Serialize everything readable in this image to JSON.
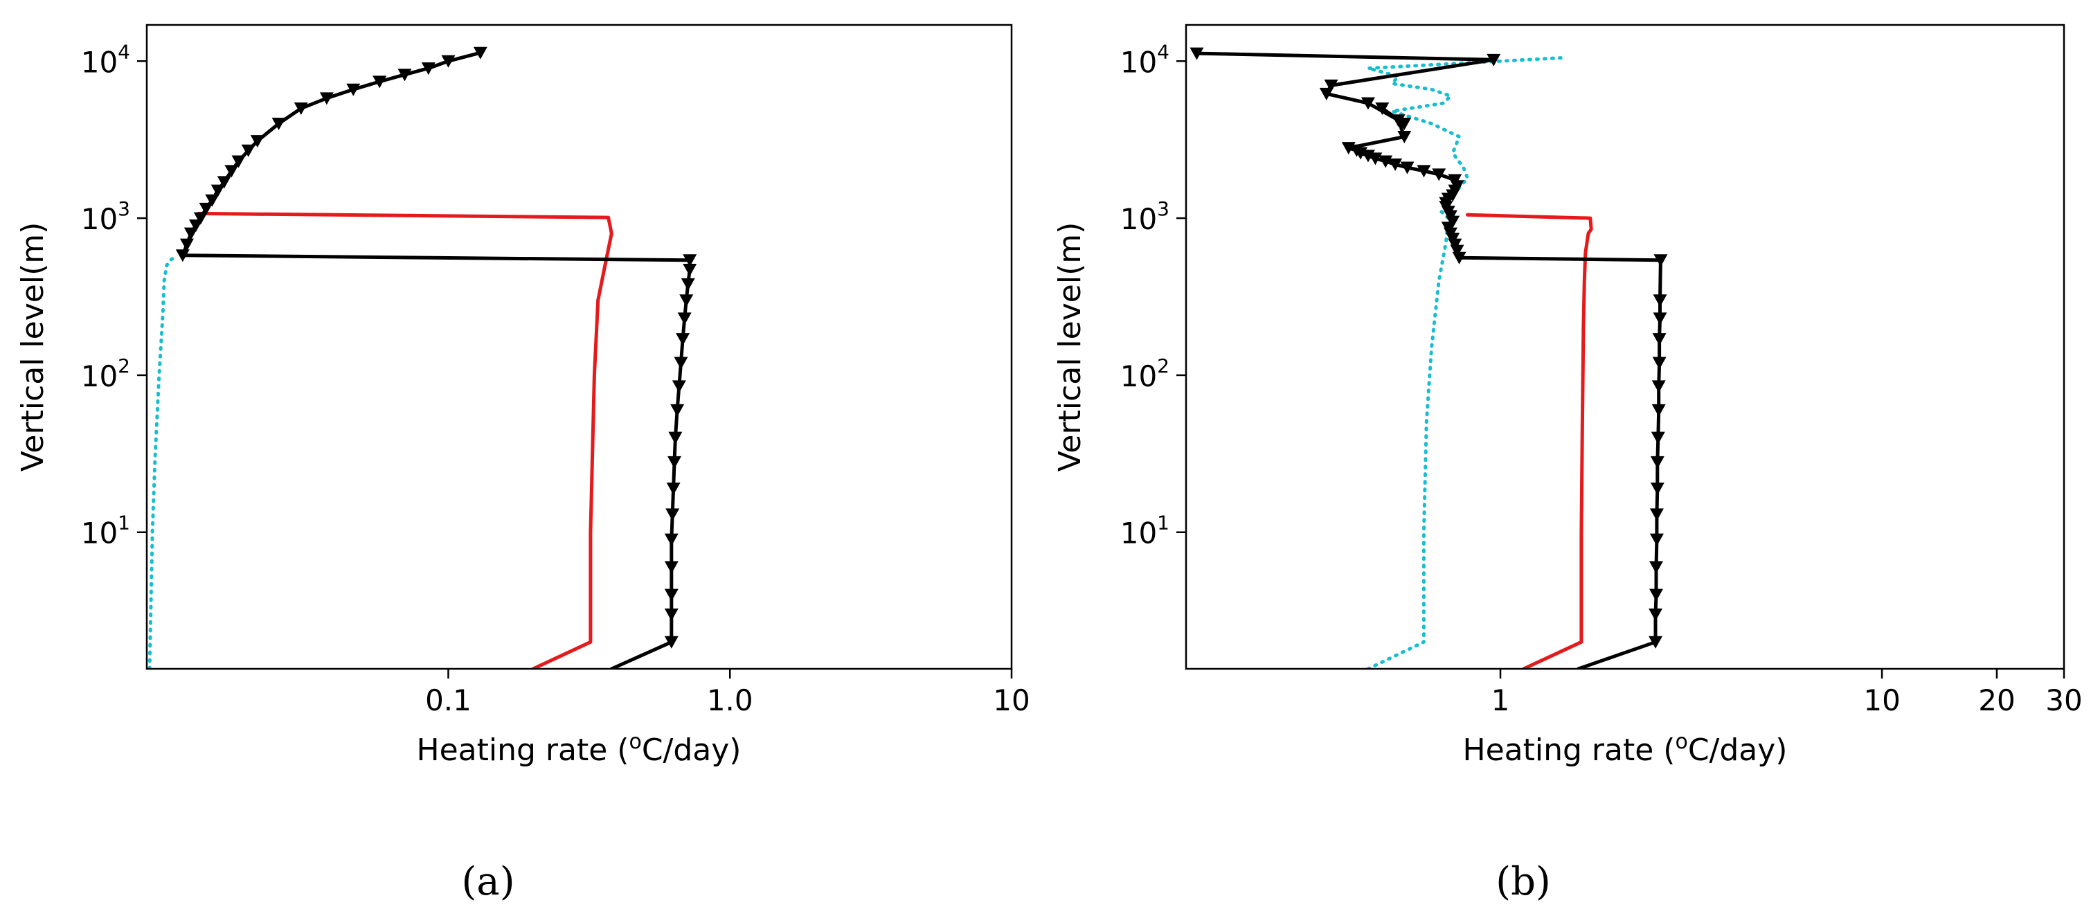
{
  "chart_data": [
    {
      "type": "line",
      "panel_label": "(a)",
      "xlabel": "Heating rate (°C/day)",
      "xlabel_main": "Heating rate (",
      "xlabel_sup": "o",
      "xlabel_tail": "C/day)",
      "ylabel": "Vertical level(m)",
      "xscale": "log",
      "yscale": "log",
      "xlim": [
        0.0085,
        10
      ],
      "ylim": [
        1.35,
        17000
      ],
      "xticks": [
        {
          "value": 0.1,
          "label": "0.1"
        },
        {
          "value": 1.0,
          "label": "1.0"
        },
        {
          "value": 10,
          "label": "10"
        }
      ],
      "yticks": [
        {
          "value": 10,
          "base": "10",
          "exp": "1"
        },
        {
          "value": 100,
          "base": "10",
          "exp": "2"
        },
        {
          "value": 1000,
          "base": "10",
          "exp": "3"
        },
        {
          "value": 10000,
          "base": "10",
          "exp": "4"
        }
      ],
      "series": [
        {
          "name": "cyan-dotted",
          "color": "#17becf",
          "style": "dotted",
          "marker": "none",
          "x": [
            0.0087,
            0.0089,
            0.0091,
            0.0094,
            0.0097,
            0.0098,
            0.01,
            0.0103,
            0.0106
          ],
          "y": [
            1.35,
            10,
            30,
            100,
            250,
            400,
            500,
            540,
            560
          ]
        },
        {
          "name": "red-solid",
          "color": "#e41a1c",
          "style": "solid",
          "marker": "none",
          "x": [
            0.2,
            0.32,
            0.32,
            0.33,
            0.34,
            0.36,
            0.38,
            0.37,
            0.013
          ],
          "y": [
            1.35,
            2,
            10,
            100,
            300,
            500,
            800,
            1010,
            1070
          ]
        },
        {
          "name": "black-triangles",
          "color": "#000000",
          "style": "solid",
          "marker": "triangle-down",
          "x": [
            0.38,
            0.62,
            0.62,
            0.62,
            0.62,
            0.62,
            0.625,
            0.63,
            0.635,
            0.64,
            0.65,
            0.66,
            0.67,
            0.68,
            0.69,
            0.7,
            0.71,
            0.72,
            0.72,
            0.0114,
            0.0118,
            0.0122,
            0.0127,
            0.0132,
            0.0138,
            0.0145,
            0.0152,
            0.016,
            0.017,
            0.018,
            0.0195,
            0.021,
            0.025,
            0.03,
            0.037,
            0.046,
            0.057,
            0.07,
            0.085,
            0.1,
            0.13
          ],
          "y": [
            1.35,
            2,
            3,
            4,
            6,
            9,
            13,
            19,
            28,
            40,
            60,
            85,
            120,
            170,
            230,
            300,
            380,
            470,
            540,
            580,
            680,
            800,
            900,
            1000,
            1150,
            1300,
            1500,
            1700,
            2000,
            2300,
            2700,
            3100,
            4000,
            5000,
            5800,
            6600,
            7400,
            8200,
            9000,
            10000,
            11300
          ]
        }
      ]
    },
    {
      "type": "line",
      "panel_label": "(b)",
      "xlabel": "Heating rate (°C/day)",
      "xlabel_main": "Heating rate (",
      "xlabel_sup": "o",
      "xlabel_tail": "C/day)",
      "ylabel": "Vertical level(m)",
      "xscale": "log",
      "yscale": "log",
      "xlim": [
        0.15,
        30
      ],
      "ylim": [
        1.35,
        17000
      ],
      "xticks": [
        {
          "value": 1,
          "label": "1"
        },
        {
          "value": 10,
          "label": "10"
        },
        {
          "value": 20,
          "label": "20"
        },
        {
          "value": 30,
          "label": "30"
        }
      ],
      "yticks": [
        {
          "value": 10,
          "base": "10",
          "exp": "1"
        },
        {
          "value": 100,
          "base": "10",
          "exp": "2"
        },
        {
          "value": 1000,
          "base": "10",
          "exp": "3"
        },
        {
          "value": 10000,
          "base": "10",
          "exp": "4"
        }
      ],
      "series": [
        {
          "name": "cyan-dotted",
          "color": "#17becf",
          "style": "dotted",
          "marker": "none",
          "x": [
            0.45,
            0.63,
            0.63,
            0.64,
            0.66,
            0.69,
            0.72,
            0.73,
            0.7,
            0.72,
            0.75,
            0.82,
            0.8,
            0.75,
            0.78,
            0.66,
            0.52,
            0.71,
            0.74,
            0.66,
            0.52,
            0.54,
            0.45,
            1.45
          ],
          "y": [
            1.35,
            2,
            10,
            50,
            150,
            400,
            700,
            1000,
            1100,
            1200,
            1400,
            1800,
            2100,
            2600,
            3300,
            4000,
            4800,
            5400,
            6000,
            6600,
            7200,
            8000,
            9000,
            10500
          ]
        },
        {
          "name": "red-solid",
          "color": "#e41a1c",
          "style": "solid",
          "marker": "none",
          "x": [
            1.15,
            1.63,
            1.63,
            1.64,
            1.65,
            1.66,
            1.67,
            1.7,
            1.73,
            1.72,
            0.82
          ],
          "y": [
            1.35,
            2,
            10,
            50,
            200,
            400,
            600,
            800,
            850,
            1000,
            1050
          ]
        },
        {
          "name": "black-triangles",
          "color": "#000000",
          "style": "solid",
          "marker": "triangle-down",
          "x": [
            1.6,
            2.55,
            2.55,
            2.56,
            2.56,
            2.57,
            2.57,
            2.58,
            2.58,
            2.59,
            2.6,
            2.6,
            2.61,
            2.61,
            2.62,
            2.62,
            2.63,
            0.78,
            0.77,
            0.76,
            0.75,
            0.74,
            0.73,
            0.75,
            0.74,
            0.73,
            0.72,
            0.72,
            0.73,
            0.75,
            0.76,
            0.77,
            0.76,
            0.69,
            0.63,
            0.57,
            0.53,
            0.5,
            0.47,
            0.45,
            0.43,
            0.42,
            0.4,
            0.56,
            0.54,
            0.49,
            0.56,
            0.45,
            0.35,
            0.36,
            0.96,
            0.16
          ],
          "y": [
            1.35,
            2,
            3,
            4,
            6,
            9,
            13,
            19,
            28,
            40,
            60,
            85,
            120,
            170,
            230,
            300,
            540,
            560,
            620,
            680,
            740,
            800,
            870,
            950,
            1030,
            1100,
            1180,
            1250,
            1330,
            1400,
            1500,
            1600,
            1750,
            1900,
            2000,
            2100,
            2200,
            2300,
            2400,
            2500,
            2600,
            2700,
            2800,
            3300,
            4200,
            5000,
            4000,
            5400,
            6200,
            7000,
            10200,
            11200
          ]
        }
      ]
    }
  ]
}
